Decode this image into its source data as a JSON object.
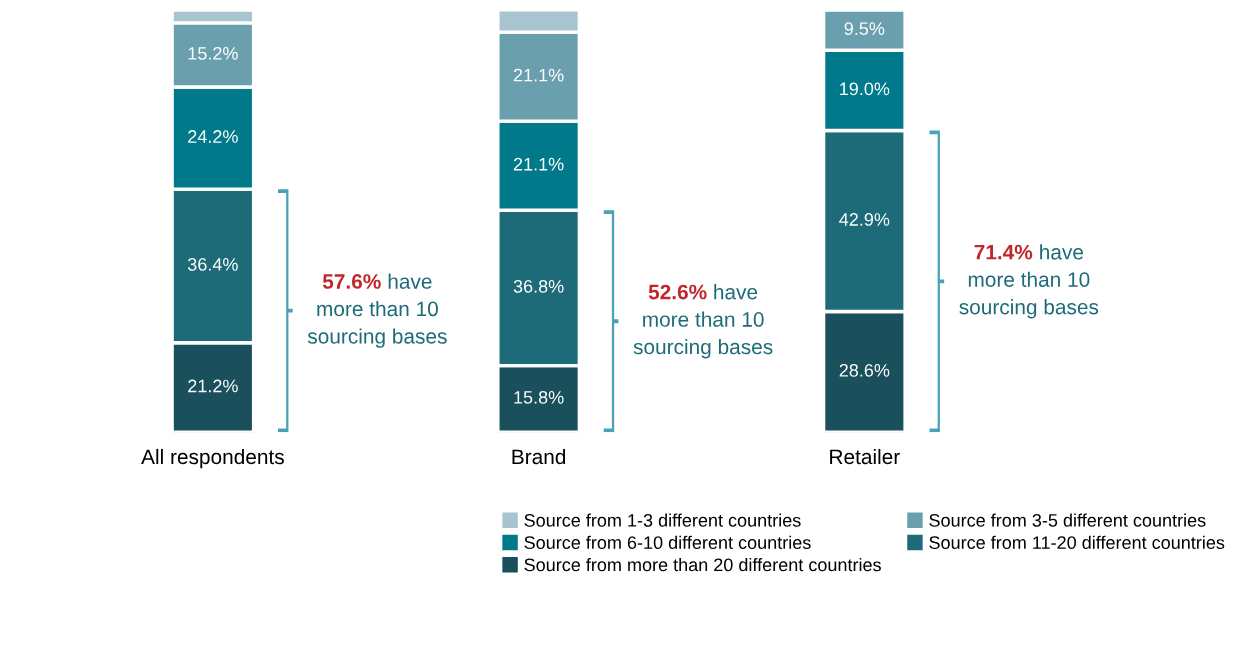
{
  "chart_data": {
    "type": "bar",
    "stacked": true,
    "categories": [
      "All respondents",
      "Brand",
      "Retailer"
    ],
    "series": [
      {
        "name": "Source from more than 20 different countries",
        "color": "#1a4f5c",
        "values": [
          21.2,
          15.8,
          28.6
        ],
        "value_labels": [
          "21.2%",
          "15.8%",
          "28.6%"
        ]
      },
      {
        "name": "Source from 11-20 different countries",
        "color": "#1d6b78",
        "values": [
          36.4,
          36.8,
          42.9
        ],
        "value_labels": [
          "36.4%",
          "36.8%",
          "42.9%"
        ]
      },
      {
        "name": "Source from 6-10 different countries",
        "color": "#007a8a",
        "values": [
          24.2,
          21.1,
          19.0
        ],
        "value_labels": [
          "24.2%",
          "21.1%",
          "19.0%"
        ]
      },
      {
        "name": "Source from 3-5 different countries",
        "color": "#6a9fae",
        "values": [
          15.2,
          21.1,
          9.5
        ],
        "value_labels": [
          "15.2%",
          "21.1%",
          "9.5%"
        ]
      },
      {
        "name": "Source from 1-3 different countries",
        "color": "#a7c4cf",
        "values": [
          3.0,
          5.3,
          null
        ],
        "value_labels": [
          null,
          null,
          null
        ]
      }
    ],
    "annotations": [
      "57.6% have\nmore than 10\nsourcing bases",
      "52.6% have\nmore than 10\nsourcing bases",
      "71.4% have\nmore than 10\nsourcing bases"
    ],
    "legend": "bottom",
    "grid": false
  }
}
